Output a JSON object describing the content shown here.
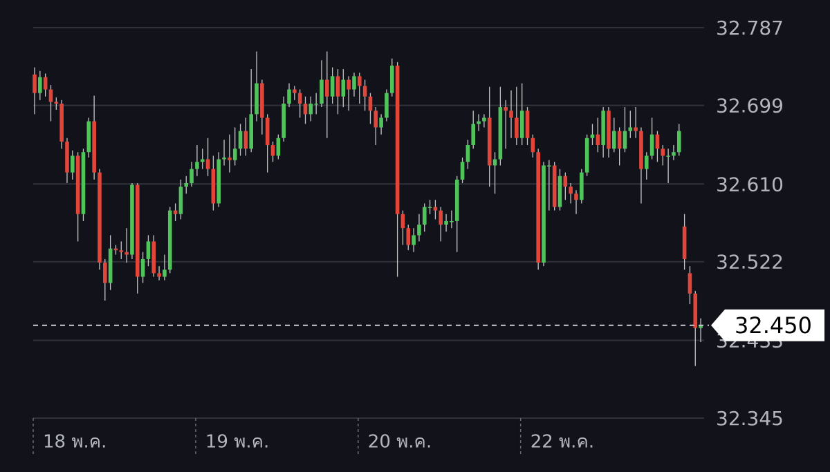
{
  "chart_data": {
    "type": "candlestick",
    "categories": [
      "18 พ.ค.",
      null,
      null,
      null,
      null,
      null,
      null,
      null,
      null,
      null,
      null,
      null,
      null,
      null,
      null,
      null,
      null,
      null,
      null,
      null,
      null,
      null,
      null,
      null,
      null,
      null,
      null,
      null,
      null,
      null,
      "19 พ.ค.",
      null,
      null,
      null,
      null,
      null,
      null,
      null,
      null,
      null,
      null,
      null,
      null,
      null,
      null,
      null,
      null,
      null,
      null,
      null,
      null,
      null,
      null,
      null,
      null,
      null,
      null,
      null,
      null,
      null,
      "20 พ.ค.",
      null,
      null,
      null,
      null,
      null,
      null,
      null,
      null,
      null,
      null,
      null,
      null,
      null,
      null,
      null,
      null,
      null,
      null,
      null,
      null,
      null,
      null,
      null,
      null,
      null,
      null,
      null,
      null,
      null,
      "22 พ.ค.",
      null,
      null,
      null,
      null,
      null,
      null,
      null,
      null,
      null,
      null,
      null,
      null,
      null,
      null,
      null,
      null,
      null,
      null,
      null,
      null,
      null,
      null,
      null,
      null,
      null,
      null,
      null,
      null,
      null,
      null,
      null,
      null,
      null
    ],
    "ohlc": [
      [
        32.734,
        32.742,
        32.689,
        32.713
      ],
      [
        32.713,
        32.738,
        32.705,
        32.731
      ],
      [
        32.731,
        32.735,
        32.709,
        32.717
      ],
      [
        32.717,
        32.722,
        32.681,
        32.703
      ],
      [
        32.703,
        32.708,
        32.694,
        32.701
      ],
      [
        32.701,
        32.705,
        32.65,
        32.658
      ],
      [
        32.658,
        32.662,
        32.611,
        32.623
      ],
      [
        32.623,
        32.648,
        32.615,
        32.642
      ],
      [
        32.642,
        32.646,
        32.545,
        32.576
      ],
      [
        32.576,
        32.65,
        32.568,
        32.646
      ],
      [
        32.646,
        32.685,
        32.64,
        32.681
      ],
      [
        32.681,
        32.71,
        32.615,
        32.623
      ],
      [
        32.623,
        32.627,
        32.513,
        32.521
      ],
      [
        32.521,
        32.525,
        32.478,
        32.498
      ],
      [
        32.498,
        32.552,
        32.49,
        32.537
      ],
      [
        32.537,
        32.541,
        32.53,
        32.535
      ],
      [
        32.535,
        32.545,
        32.525,
        32.533
      ],
      [
        32.533,
        32.56,
        32.521,
        32.53
      ],
      [
        32.53,
        32.611,
        32.525,
        32.609
      ],
      [
        32.609,
        32.611,
        32.486,
        32.505
      ],
      [
        32.505,
        32.533,
        32.498,
        32.525
      ],
      [
        32.525,
        32.552,
        32.517,
        32.545
      ],
      [
        32.545,
        32.552,
        32.505,
        32.509
      ],
      [
        32.509,
        32.517,
        32.501,
        32.505
      ],
      [
        32.505,
        32.53,
        32.501,
        32.513
      ],
      [
        32.513,
        32.584,
        32.509,
        32.58
      ],
      [
        32.58,
        32.588,
        32.568,
        32.576
      ],
      [
        32.576,
        32.615,
        32.57,
        32.607
      ],
      [
        32.607,
        32.619,
        32.599,
        32.611
      ],
      [
        32.611,
        32.635,
        32.607,
        32.627
      ],
      [
        32.627,
        32.654,
        32.619,
        32.635
      ],
      [
        32.635,
        32.65,
        32.627,
        32.638
      ],
      [
        32.638,
        32.662,
        32.619,
        32.627
      ],
      [
        32.627,
        32.642,
        32.58,
        32.588
      ],
      [
        32.588,
        32.646,
        32.584,
        32.638
      ],
      [
        32.638,
        32.66,
        32.631,
        32.64
      ],
      [
        32.64,
        32.666,
        32.623,
        32.637
      ],
      [
        32.637,
        32.674,
        32.631,
        32.65
      ],
      [
        32.65,
        32.678,
        32.642,
        32.67
      ],
      [
        32.67,
        32.685,
        32.642,
        32.65
      ],
      [
        32.65,
        32.74,
        32.646,
        32.689
      ],
      [
        32.689,
        32.76,
        32.681,
        32.724
      ],
      [
        32.724,
        32.728,
        32.666,
        32.685
      ],
      [
        32.685,
        32.689,
        32.623,
        32.654
      ],
      [
        32.654,
        32.658,
        32.635,
        32.642
      ],
      [
        32.642,
        32.666,
        32.638,
        32.662
      ],
      [
        32.662,
        32.709,
        32.658,
        32.701
      ],
      [
        32.701,
        32.724,
        32.697,
        32.717
      ],
      [
        32.717,
        32.721,
        32.705,
        32.713
      ],
      [
        32.713,
        32.717,
        32.685,
        32.701
      ],
      [
        32.701,
        32.709,
        32.678,
        32.689
      ],
      [
        32.689,
        32.709,
        32.681,
        32.701
      ],
      [
        32.701,
        32.713,
        32.689,
        32.701
      ],
      [
        32.701,
        32.75,
        32.697,
        32.728
      ],
      [
        32.728,
        32.76,
        32.662,
        32.709
      ],
      [
        32.709,
        32.742,
        32.701,
        32.732
      ],
      [
        32.732,
        32.74,
        32.689,
        32.709
      ],
      [
        32.709,
        32.74,
        32.697,
        32.728
      ],
      [
        32.728,
        32.732,
        32.693,
        32.717
      ],
      [
        32.717,
        32.736,
        32.709,
        32.732
      ],
      [
        32.732,
        32.736,
        32.701,
        32.721
      ],
      [
        32.721,
        32.728,
        32.693,
        32.709
      ],
      [
        32.709,
        32.713,
        32.678,
        32.693
      ],
      [
        32.693,
        32.697,
        32.654,
        32.674
      ],
      [
        32.674,
        32.689,
        32.666,
        32.685
      ],
      [
        32.685,
        32.717,
        32.681,
        32.713
      ],
      [
        32.713,
        32.752,
        32.709,
        32.744
      ],
      [
        32.744,
        32.748,
        32.505,
        32.576
      ],
      [
        32.576,
        32.58,
        32.541,
        32.56
      ],
      [
        32.56,
        32.564,
        32.535,
        32.541
      ],
      [
        32.541,
        32.56,
        32.533,
        32.552
      ],
      [
        32.552,
        32.576,
        32.545,
        32.564
      ],
      [
        32.564,
        32.588,
        32.556,
        32.584
      ],
      [
        32.584,
        32.592,
        32.576,
        32.584
      ],
      [
        32.584,
        32.592,
        32.57,
        32.58
      ],
      [
        32.58,
        32.584,
        32.545,
        32.564
      ],
      [
        32.564,
        32.576,
        32.556,
        32.568
      ],
      [
        32.568,
        32.58,
        32.56,
        32.568
      ],
      [
        32.568,
        32.619,
        32.533,
        32.615
      ],
      [
        32.615,
        32.64,
        32.611,
        32.635
      ],
      [
        32.635,
        32.66,
        32.627,
        32.654
      ],
      [
        32.654,
        32.693,
        32.65,
        32.678
      ],
      [
        32.678,
        32.689,
        32.67,
        32.681
      ],
      [
        32.681,
        32.689,
        32.674,
        32.685
      ],
      [
        32.685,
        32.72,
        32.607,
        32.631
      ],
      [
        32.631,
        32.646,
        32.599,
        32.638
      ],
      [
        32.638,
        32.72,
        32.631,
        32.697
      ],
      [
        32.697,
        32.705,
        32.65,
        32.693
      ],
      [
        32.693,
        32.716,
        32.662,
        32.685
      ],
      [
        32.685,
        32.72,
        32.654,
        32.662
      ],
      [
        32.662,
        32.724,
        32.654,
        32.693
      ],
      [
        32.693,
        32.697,
        32.654,
        32.662
      ],
      [
        32.662,
        32.666,
        32.64,
        32.646
      ],
      [
        32.646,
        32.65,
        32.513,
        32.521
      ],
      [
        32.521,
        32.635,
        32.517,
        32.631
      ],
      [
        32.631,
        32.637,
        32.58,
        32.631
      ],
      [
        32.631,
        32.635,
        32.58,
        32.584
      ],
      [
        32.584,
        32.627,
        32.58,
        32.619
      ],
      [
        32.619,
        32.623,
        32.592,
        32.607
      ],
      [
        32.607,
        32.611,
        32.588,
        32.599
      ],
      [
        32.599,
        32.603,
        32.576,
        32.592
      ],
      [
        32.592,
        32.627,
        32.588,
        32.623
      ],
      [
        32.623,
        32.666,
        32.619,
        32.662
      ],
      [
        32.662,
        32.678,
        32.654,
        32.666
      ],
      [
        32.666,
        32.685,
        32.646,
        32.654
      ],
      [
        32.654,
        32.697,
        32.64,
        32.693
      ],
      [
        32.693,
        32.697,
        32.64,
        32.65
      ],
      [
        32.65,
        32.685,
        32.646,
        32.67
      ],
      [
        32.67,
        32.674,
        32.631,
        32.65
      ],
      [
        32.65,
        32.697,
        32.646,
        32.67
      ],
      [
        32.67,
        32.693,
        32.662,
        32.674
      ],
      [
        32.674,
        32.697,
        32.662,
        32.67
      ],
      [
        32.67,
        32.674,
        32.588,
        32.627
      ],
      [
        32.627,
        32.646,
        32.615,
        32.642
      ],
      [
        32.642,
        32.685,
        32.638,
        32.666
      ],
      [
        32.666,
        32.67,
        32.635,
        32.65
      ],
      [
        32.65,
        32.654,
        32.631,
        32.642
      ],
      [
        32.642,
        32.65,
        32.611,
        32.642
      ],
      [
        32.642,
        32.654,
        32.637,
        32.646
      ],
      [
        32.646,
        32.678,
        32.642,
        32.67
      ],
      [
        32.562,
        32.576,
        32.513,
        32.525
      ],
      [
        32.509,
        32.517,
        32.474,
        32.486
      ],
      [
        32.486,
        32.489,
        32.404,
        32.447
      ],
      [
        32.447,
        32.458,
        32.431,
        32.45
      ]
    ],
    "up_color": "#4fc45a",
    "down_color": "#e2463b",
    "ylim": [
      32.345,
      32.787
    ],
    "yticks": [
      32.787,
      32.699,
      {
        "value": 32.61,
        "label": "32.610"
      },
      32.522,
      32.433,
      32.345
    ],
    "current_price": {
      "value": 32.45,
      "label": "32.450"
    },
    "grid": true
  }
}
